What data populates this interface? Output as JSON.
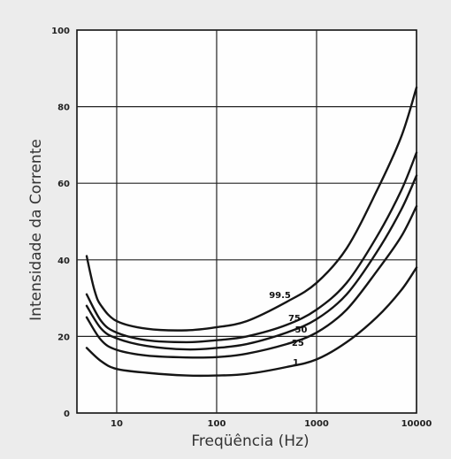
{
  "chart_data": {
    "type": "line",
    "xlabel": "Freqüência (Hz)",
    "ylabel": "Intensidade da Corrente",
    "x_scale": "log",
    "xlim": [
      4,
      10000
    ],
    "ylim": [
      0,
      100
    ],
    "grid": true,
    "x_ticks": [
      {
        "value": 10,
        "label": "10"
      },
      {
        "value": 100,
        "label": "100"
      },
      {
        "value": 1000,
        "label": "1000"
      },
      {
        "value": 10000,
        "label": "10000"
      }
    ],
    "y_ticks": [
      {
        "value": 0,
        "label": "0"
      },
      {
        "value": 20,
        "label": "20"
      },
      {
        "value": 40,
        "label": "40"
      },
      {
        "value": 60,
        "label": "60"
      },
      {
        "value": 80,
        "label": "80"
      },
      {
        "value": 100,
        "label": "100"
      }
    ],
    "series": [
      {
        "name": "99.5",
        "label_at": [
          430,
          30
        ],
        "points": [
          [
            5,
            41
          ],
          [
            6,
            32
          ],
          [
            7,
            28
          ],
          [
            10,
            24
          ],
          [
            20,
            22
          ],
          [
            50,
            21.6
          ],
          [
            100,
            22.4
          ],
          [
            200,
            24
          ],
          [
            500,
            29
          ],
          [
            1000,
            34
          ],
          [
            2000,
            43
          ],
          [
            4000,
            58
          ],
          [
            7000,
            72
          ],
          [
            10000,
            85
          ]
        ]
      },
      {
        "name": "75",
        "label_at": [
          600,
          24
        ],
        "points": [
          [
            5,
            31
          ],
          [
            7,
            24
          ],
          [
            10,
            21
          ],
          [
            20,
            19
          ],
          [
            50,
            18.5
          ],
          [
            100,
            19
          ],
          [
            200,
            20
          ],
          [
            500,
            23
          ],
          [
            1000,
            27
          ],
          [
            2000,
            34
          ],
          [
            4000,
            46
          ],
          [
            7000,
            58
          ],
          [
            10000,
            68
          ]
        ]
      },
      {
        "name": "50",
        "label_at": [
          700,
          21
        ],
        "points": [
          [
            5,
            28
          ],
          [
            7,
            22
          ],
          [
            10,
            19.5
          ],
          [
            20,
            17.5
          ],
          [
            50,
            16.6
          ],
          [
            100,
            17
          ],
          [
            200,
            18
          ],
          [
            500,
            21
          ],
          [
            1000,
            24.5
          ],
          [
            2000,
            31
          ],
          [
            4000,
            42
          ],
          [
            7000,
            53
          ],
          [
            10000,
            62
          ]
        ]
      },
      {
        "name": "25",
        "label_at": [
          650,
          17.5
        ],
        "points": [
          [
            5,
            25
          ],
          [
            7,
            19
          ],
          [
            10,
            16.5
          ],
          [
            20,
            15
          ],
          [
            50,
            14.5
          ],
          [
            100,
            14.6
          ],
          [
            200,
            15.5
          ],
          [
            500,
            18
          ],
          [
            1000,
            21
          ],
          [
            2000,
            27
          ],
          [
            4000,
            37
          ],
          [
            7000,
            46
          ],
          [
            10000,
            54
          ]
        ]
      },
      {
        "name": "1",
        "label_at": [
          620,
          12.5
        ],
        "points": [
          [
            5,
            17
          ],
          [
            7,
            13.5
          ],
          [
            10,
            11.5
          ],
          [
            20,
            10.5
          ],
          [
            50,
            9.8
          ],
          [
            100,
            9.8
          ],
          [
            200,
            10.2
          ],
          [
            500,
            12
          ],
          [
            1000,
            14
          ],
          [
            2000,
            18.5
          ],
          [
            4000,
            25
          ],
          [
            7000,
            32
          ],
          [
            10000,
            38
          ]
        ]
      }
    ]
  }
}
